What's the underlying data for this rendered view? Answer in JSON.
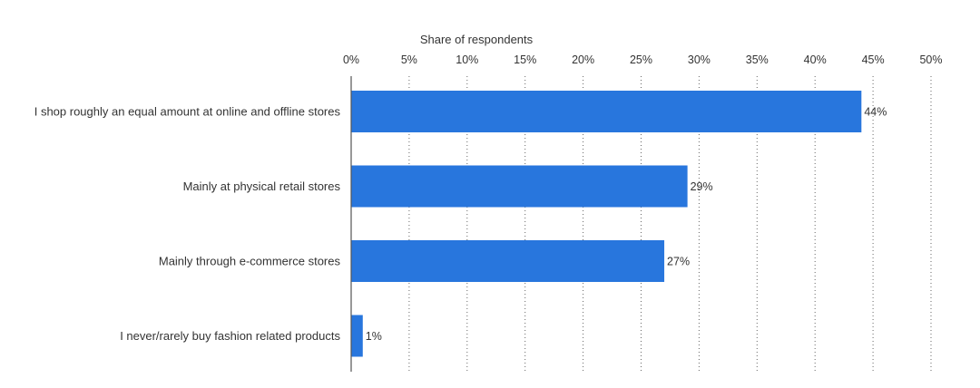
{
  "chart_data": {
    "type": "bar",
    "orientation": "horizontal",
    "xlabel": "Share of respondents",
    "ylabel": "",
    "xlim": [
      0,
      50
    ],
    "x_ticks": [
      0,
      5,
      10,
      15,
      20,
      25,
      30,
      35,
      40,
      45,
      50
    ],
    "tick_suffix": "%",
    "grid": true,
    "categories": [
      "I shop roughly an equal amount at online and offline stores",
      "Mainly at physical retail stores",
      "Mainly through e-commerce stores",
      "I never/rarely buy fashion related products"
    ],
    "values": [
      44,
      29,
      27,
      1
    ],
    "value_labels": [
      "44%",
      "29%",
      "27%",
      "1%"
    ],
    "bar_color": "#2876dd"
  }
}
